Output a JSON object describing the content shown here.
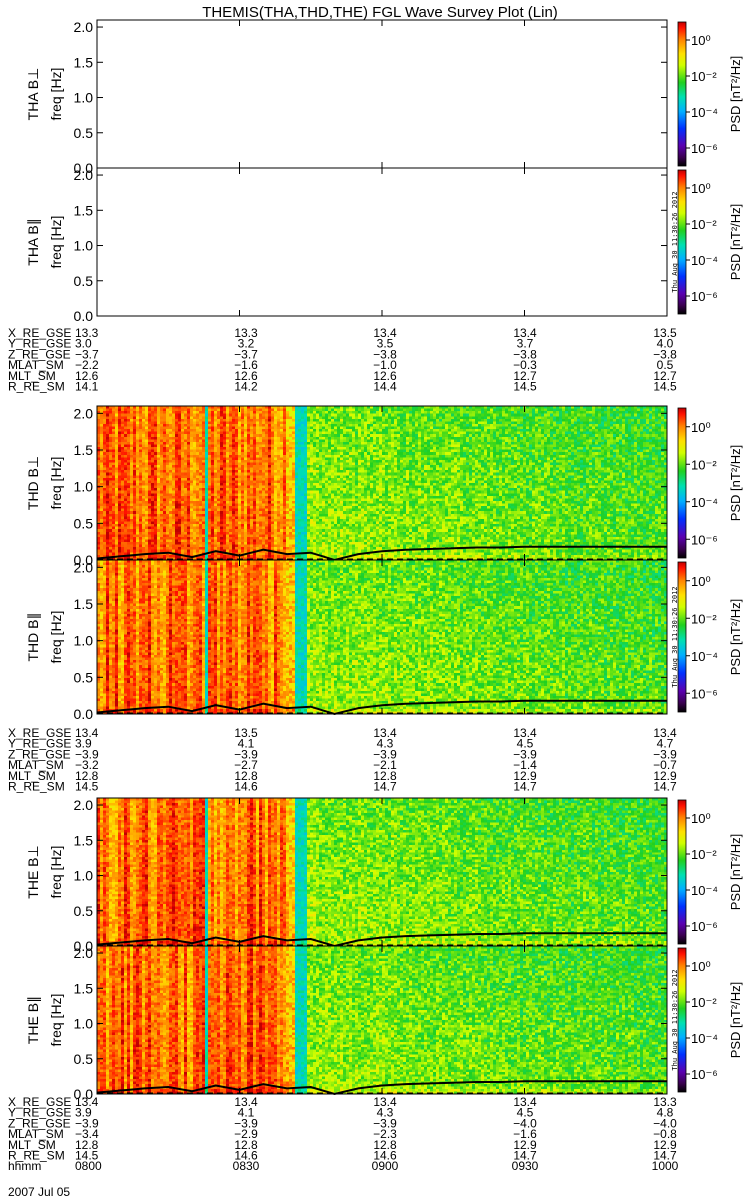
{
  "chart_data": {
    "type": "heatmap",
    "title": "THEMIS(THA,THD,THE) FGL Wave Survey Plot (Lin)",
    "colorbar": {
      "label": "PSD [nT²/Hz]",
      "ticks": [
        "10⁰",
        "10⁻²",
        "10⁻⁴",
        "10⁻⁶"
      ],
      "tick_exponents": [
        0,
        -2,
        -4,
        -6
      ],
      "scale": "log",
      "range_exponent": [
        -7,
        1
      ]
    },
    "x": {
      "range_minutes": [
        0,
        120
      ],
      "ticks": [
        "0800",
        "0830",
        "0900",
        "0930",
        "1000"
      ],
      "tick_minutes": [
        0,
        30,
        60,
        90,
        120
      ],
      "header_label": "hhmm",
      "date_label": "2007 Jul 05"
    },
    "panels": [
      {
        "probe": "THA",
        "component": "B⊥",
        "ylabel": "freq [Hz]",
        "ylim": [
          0,
          2.1
        ],
        "yticks": [
          "0.0",
          "0.5",
          "1.0",
          "1.5",
          "2.0"
        ],
        "ytick_values": [
          0,
          0.5,
          1.0,
          1.5,
          2.0
        ],
        "has_data": false
      },
      {
        "probe": "THA",
        "component": "B∥",
        "ylabel": "freq [Hz]",
        "ylim": [
          0,
          2.1
        ],
        "yticks": [
          "0.0",
          "0.5",
          "1.0",
          "1.5",
          "2.0"
        ],
        "ytick_values": [
          0,
          0.5,
          1.0,
          1.5,
          2.0
        ],
        "has_data": false
      },
      {
        "probe": "THD",
        "component": "B⊥",
        "ylabel": "freq [Hz]",
        "ylim": [
          0,
          2.1
        ],
        "yticks": [
          "0.0",
          "0.5",
          "1.0",
          "1.5",
          "2.0"
        ],
        "ytick_values": [
          0,
          0.5,
          1.0,
          1.5,
          2.0
        ],
        "has_data": true
      },
      {
        "probe": "THD",
        "component": "B∥",
        "ylabel": "freq [Hz]",
        "ylim": [
          0,
          2.1
        ],
        "yticks": [
          "0.0",
          "0.5",
          "1.0",
          "1.5",
          "2.0"
        ],
        "ytick_values": [
          0,
          0.5,
          1.0,
          1.5,
          2.0
        ],
        "has_data": true
      },
      {
        "probe": "THE",
        "component": "B⊥",
        "ylabel": "freq [Hz]",
        "ylim": [
          0,
          2.1
        ],
        "yticks": [
          "0.0",
          "0.5",
          "1.0",
          "1.5",
          "2.0"
        ],
        "ytick_values": [
          0,
          0.5,
          1.0,
          1.5,
          2.0
        ],
        "has_data": true
      },
      {
        "probe": "THE",
        "component": "B∥",
        "ylabel": "freq [Hz]",
        "ylim": [
          0,
          2.1
        ],
        "yticks": [
          "0.0",
          "0.5",
          "1.0",
          "1.5",
          "2.0"
        ],
        "ytick_values": [
          0,
          0.5,
          1.0,
          1.5,
          2.0
        ],
        "has_data": true
      }
    ],
    "spectrogram_estimate": {
      "noisy_band_minutes": [
        0,
        40
      ],
      "noisy_band_psd_exp": 0.2,
      "quiet_band_minutes": [
        40,
        120
      ],
      "quiet_band_psd_exp": -1.4,
      "low_psd_stripes_minutes": [
        [
          22.5,
          23.5
        ],
        [
          41.5,
          44.5
        ]
      ],
      "low_psd_stripe_exp": -3.3,
      "gyro_line_freq_hz": [
        0.02,
        0.05,
        0.08,
        0.1,
        0.04,
        0.12,
        0.06,
        0.14,
        0.08,
        0.1,
        0.0,
        0.08,
        0.12,
        0.14,
        0.15,
        0.16,
        0.17,
        0.17,
        0.18,
        0.18,
        0.18,
        0.18,
        0.18,
        0.18,
        0.18
      ],
      "gyro_line_minutes_step": 5,
      "dashed_baseline_hz": 0.01
    },
    "ephemeris_blocks": [
      {
        "labels": [
          "X_RE_GSE",
          "Y_RE_GSE",
          "Z_RE_GSE",
          "MLAT_SM",
          "MLT_SM",
          "R_RE_SM"
        ],
        "rows": [
          [
            "13.3",
            "13.3",
            "13.4",
            "13.4",
            "13.5"
          ],
          [
            "3.0",
            "3.2",
            "3.5",
            "3.7",
            "4.0"
          ],
          [
            "−3.7",
            "−3.7",
            "−3.8",
            "−3.8",
            "−3.8"
          ],
          [
            "−2.2",
            "−1.6",
            "−1.0",
            "−0.3",
            "0.5"
          ],
          [
            "12.6",
            "12.6",
            "12.6",
            "12.7",
            "12.7"
          ],
          [
            "14.1",
            "14.2",
            "14.4",
            "14.5",
            "14.5"
          ]
        ]
      },
      {
        "labels": [
          "X_RE_GSE",
          "Y_RE_GSE",
          "Z_RE_GSE",
          "MLAT_SM",
          "MLT_SM",
          "R_RE_SM"
        ],
        "rows": [
          [
            "13.4",
            "13.5",
            "13.4",
            "13.4",
            "13.4"
          ],
          [
            "3.9",
            "4.1",
            "4.3",
            "4.5",
            "4.7"
          ],
          [
            "−3.9",
            "−3.9",
            "−3.9",
            "−3.9",
            "−3.9"
          ],
          [
            "−3.2",
            "−2.7",
            "−2.1",
            "−1.4",
            "−0.7"
          ],
          [
            "12.8",
            "12.8",
            "12.8",
            "12.9",
            "12.9"
          ],
          [
            "14.5",
            "14.6",
            "14.7",
            "14.7",
            "14.7"
          ]
        ]
      },
      {
        "labels": [
          "X_RE_GSE",
          "Y_RE_GSE",
          "Z_RE_GSE",
          "MLAT_SM",
          "MLT_SM",
          "R_RE_SM",
          "hhmm"
        ],
        "rows": [
          [
            "13.4",
            "13.4",
            "13.4",
            "13.4",
            "13.3"
          ],
          [
            "3.9",
            "4.1",
            "4.3",
            "4.5",
            "4.8"
          ],
          [
            "−3.9",
            "−3.9",
            "−3.9",
            "−4.0",
            "−4.0"
          ],
          [
            "−3.4",
            "−2.9",
            "−2.3",
            "−1.6",
            "−0.8"
          ],
          [
            "12.8",
            "12.8",
            "12.8",
            "12.9",
            "12.9"
          ],
          [
            "14.5",
            "14.6",
            "14.6",
            "14.7",
            "14.7"
          ],
          [
            "0800",
            "0830",
            "0900",
            "0930",
            "1000"
          ]
        ]
      }
    ],
    "date_label": "2007 Jul 05",
    "timestamp": "Thu Aug 30 11:30:26 2012"
  }
}
